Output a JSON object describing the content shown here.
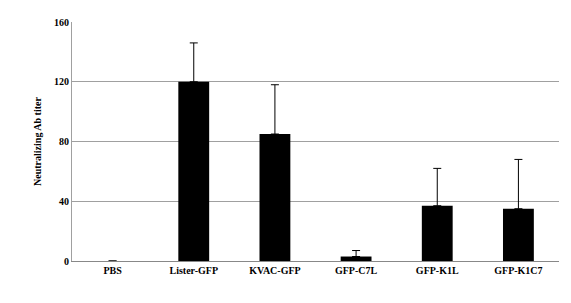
{
  "chart_data": {
    "type": "bar",
    "categories": [
      "PBS",
      "Lister-GFP",
      "KVAC-GFP",
      "GFP-C7L",
      "GFP-K1L",
      "GFP-K1C7"
    ],
    "values": [
      0,
      120,
      85,
      3,
      37,
      35
    ],
    "error": [
      0,
      26,
      33,
      4,
      25,
      33
    ],
    "color": "#000000",
    "ylabel": "Neutralizing Ab titer",
    "ylim": [
      0,
      160
    ],
    "yticks": [
      0,
      40,
      80,
      120,
      160
    ],
    "grid": true
  }
}
